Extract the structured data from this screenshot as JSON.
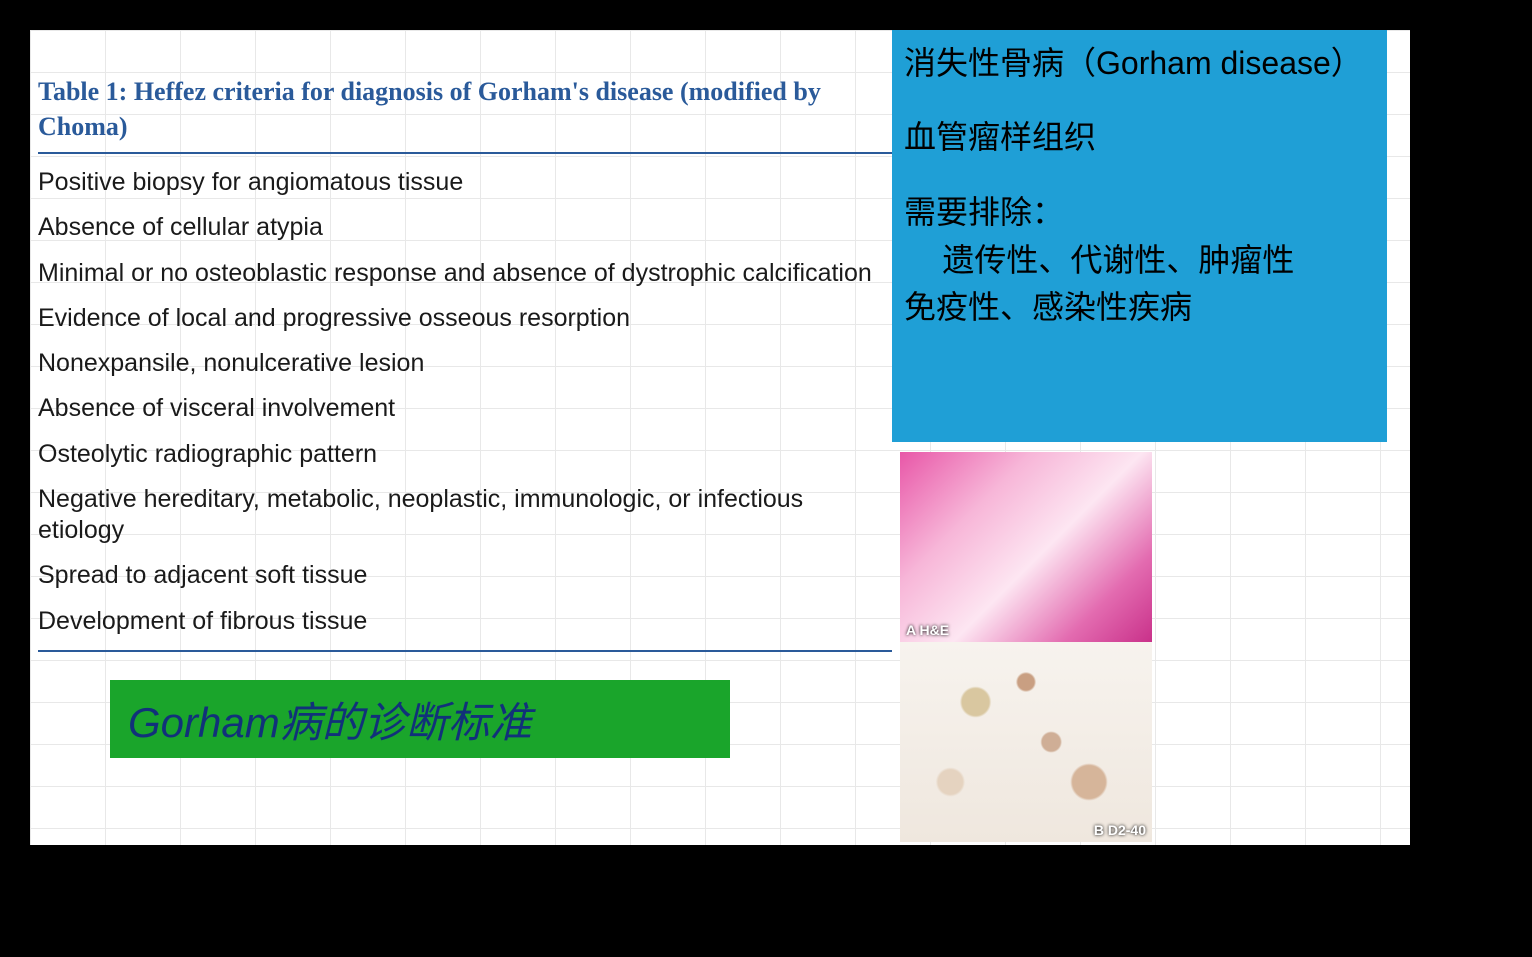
{
  "table": {
    "title": "Table 1: Heffez criteria for diagnosis of Gorham's disease (modified by Choma)",
    "title_color": "#2a5a9a",
    "rule_color": "#2a5a9a",
    "criteria": [
      "Positive biopsy for angiomatous tissue",
      "Absence of cellular atypia",
      "Minimal or no osteoblastic response and absence of dystrophic calcification",
      "Evidence of local and progressive osseous resorption",
      "Nonexpansile, nonulcerative lesion",
      "Absence of visceral involvement",
      "Osteolytic radiographic pattern",
      "Negative hereditary, metabolic, neoplastic, immunologic, or infectious etiology",
      "Spread to adjacent soft tissue",
      "Development of fibrous tissue"
    ]
  },
  "blue_callout": {
    "bg_color": "#1f9fd6",
    "line1": "消失性骨病（Gorham disease）",
    "line2": "血管瘤样组织",
    "exclude_title": "需要排除：",
    "exclude_body1": "遗传性、代谢性、肿瘤性",
    "exclude_body2": "免疫性、感染性疾病"
  },
  "green_callout": {
    "bg_color": "#1aa52b",
    "text_color": "#11317a",
    "text": "Gorham病的诊断标准"
  },
  "histology": {
    "panel_a_label": "A H&E",
    "panel_b_label": "B D2-40"
  }
}
